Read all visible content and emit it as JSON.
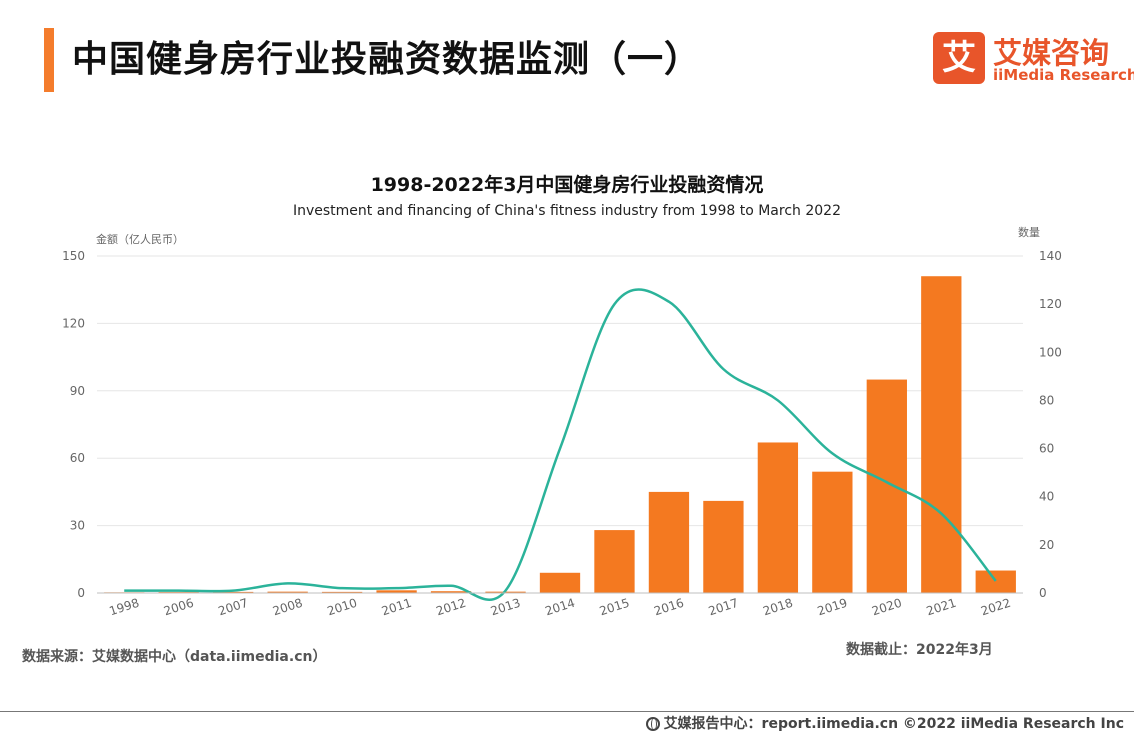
{
  "header": {
    "title": "中国健身房行业投融资数据监测（一）"
  },
  "logo": {
    "mark": "艾",
    "name_cn": "艾媒咨询",
    "name_en": "iiMedia Research"
  },
  "chart_data": {
    "type": "bar+line",
    "title": "1998-2022年3月中国健身房行业投融资情况",
    "subtitle": "Investment and financing of China's fitness industry from 1998 to March 2022",
    "ylabel": "金额（亿人民币）",
    "y2label": "数量",
    "categories": [
      "1998",
      "2006",
      "2007",
      "2008",
      "2010",
      "2011",
      "2012",
      "2013",
      "2014",
      "2015",
      "2016",
      "2017",
      "2018",
      "2019",
      "2020",
      "2021",
      "2022"
    ],
    "ylim": [
      0,
      150
    ],
    "yticks": [
      0,
      30,
      60,
      90,
      120,
      150
    ],
    "y2lim": [
      0,
      140
    ],
    "y2ticks": [
      0,
      20,
      40,
      60,
      80,
      100,
      120,
      140
    ],
    "grid": true,
    "series": [
      {
        "name": "",
        "kind": "bar",
        "axis": "left",
        "color": "#f47920",
        "values": [
          0.3,
          0.4,
          0.5,
          0.6,
          0.5,
          1.2,
          0.8,
          0.6,
          9,
          28,
          45,
          41,
          67,
          54,
          95,
          141,
          10
        ]
      },
      {
        "name": "",
        "kind": "line",
        "axis": "right",
        "color": "#2bb39a",
        "values": [
          1,
          1,
          1,
          4,
          2,
          2,
          3,
          1,
          60,
          120,
          121,
          93,
          80,
          58,
          46,
          33,
          5
        ]
      }
    ]
  },
  "footer": {
    "source": "数据来源：艾媒数据中心（data.iimedia.cn）",
    "cutoff": "数据截止：2022年3月",
    "copyright": "艾媒报告中心：report.iimedia.cn ©2022 iiMedia Research Inc"
  }
}
